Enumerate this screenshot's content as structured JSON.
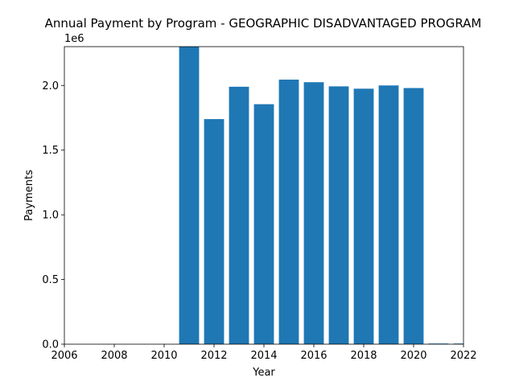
{
  "chart_data": {
    "type": "bar",
    "title": "Annual Payment by Program - GEOGRAPHIC DISADVANTAGED PROGRAM",
    "xlabel": "Year",
    "ylabel": "Payments",
    "y_offset_label": "1e6",
    "xlim": [
      2006,
      2022
    ],
    "ylim": [
      0,
      2300000
    ],
    "x_ticks": [
      2006,
      2008,
      2010,
      2012,
      2014,
      2016,
      2018,
      2020,
      2022
    ],
    "x_tick_labels": [
      "2006",
      "2008",
      "2010",
      "2012",
      "2014",
      "2016",
      "2018",
      "2020",
      "2022"
    ],
    "y_ticks": [
      0,
      500000,
      1000000,
      1500000,
      2000000
    ],
    "y_tick_labels": [
      "0.0",
      "0.5",
      "1.0",
      "1.5",
      "2.0"
    ],
    "grid": false,
    "bar_color": "#1f77b4",
    "x": [
      2011,
      2012,
      2013,
      2014,
      2015,
      2016,
      2017,
      2018,
      2019,
      2020,
      2021,
      2022
    ],
    "values": [
      2300000,
      1740000,
      1990000,
      1855000,
      2045000,
      2025000,
      1993000,
      1975000,
      2000000,
      1980000,
      5000,
      5000
    ]
  }
}
